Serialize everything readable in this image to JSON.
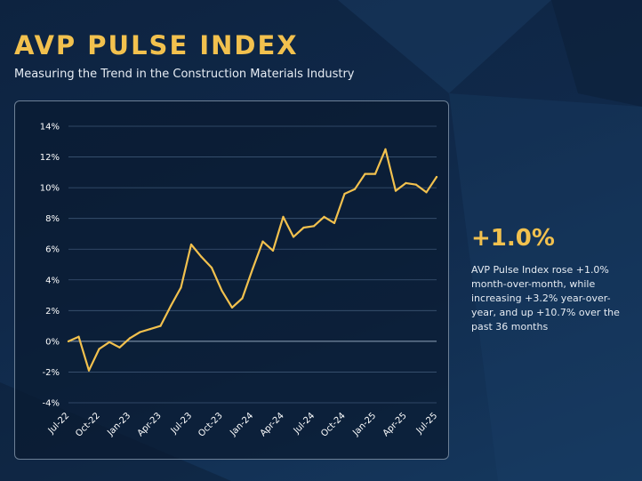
{
  "header": {
    "title": "AVP PULSE INDEX",
    "subtitle": "Measuring the Trend in the Construction Materials Industry"
  },
  "kpi": {
    "value": "+1.0%",
    "description": "AVP Pulse Index rose +1.0% month-over-month, while increasing +3.2% year-over-year, and up +10.7% over the past 36 months"
  },
  "colors": {
    "title": "#f2c14e",
    "line": "#f2c14e",
    "background": "#10294a",
    "grid": "#3d5674"
  },
  "chart_data": {
    "type": "line",
    "title": "",
    "xlabel": "",
    "ylabel": "",
    "ylim": [
      -4,
      14
    ],
    "y_ticks": [
      "-4%",
      "-2%",
      "0%",
      "2%",
      "4%",
      "6%",
      "8%",
      "10%",
      "12%",
      "14%"
    ],
    "y_tick_values": [
      -4,
      -2,
      0,
      2,
      4,
      6,
      8,
      10,
      12,
      14
    ],
    "grid": "horizontal",
    "legend": "none",
    "x_tick_labels": [
      "Jul-22",
      "Oct-22",
      "Jan-23",
      "Apr-23",
      "Jul-23",
      "Oct-23",
      "Jan-24",
      "Apr-24",
      "Jul-24",
      "Oct-24",
      "Jan-25",
      "Apr-25",
      "Jul-25"
    ],
    "x_tick_index": [
      0,
      3,
      6,
      9,
      12,
      15,
      18,
      21,
      24,
      27,
      30,
      33,
      36
    ],
    "x": [
      "Jul-22",
      "Aug-22",
      "Sep-22",
      "Oct-22",
      "Nov-22",
      "Dec-22",
      "Jan-23",
      "Feb-23",
      "Mar-23",
      "Apr-23",
      "May-23",
      "Jun-23",
      "Jul-23",
      "Aug-23",
      "Sep-23",
      "Oct-23",
      "Nov-23",
      "Dec-23",
      "Jan-24",
      "Feb-24",
      "Mar-24",
      "Apr-24",
      "May-24",
      "Jun-24",
      "Jul-24",
      "Aug-24",
      "Sep-24",
      "Oct-24",
      "Nov-24",
      "Dec-24",
      "Jan-25",
      "Feb-25",
      "Mar-25",
      "Apr-25",
      "May-25",
      "Jun-25",
      "Jul-25"
    ],
    "series": [
      {
        "values": [
          0.0,
          0.3,
          -1.9,
          -0.5,
          -0.05,
          -0.4,
          0.2,
          0.6,
          0.8,
          1.0,
          2.3,
          3.5,
          6.3,
          5.5,
          4.8,
          3.3,
          2.2,
          2.8,
          4.7,
          6.5,
          5.9,
          8.1,
          6.8,
          7.4,
          7.5,
          8.1,
          7.7,
          9.6,
          9.9,
          10.9,
          10.9,
          12.5,
          9.8,
          10.3,
          10.2,
          9.7,
          10.7
        ]
      }
    ]
  }
}
